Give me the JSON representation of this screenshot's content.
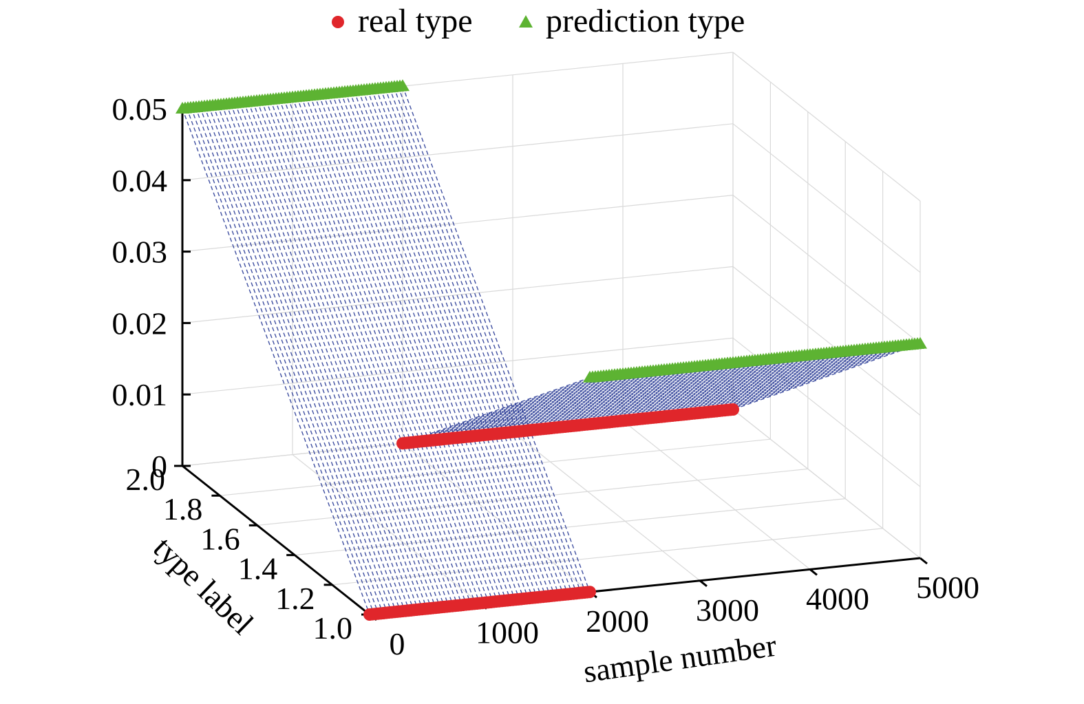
{
  "chart_data": {
    "type": "scatter",
    "projection": "3d",
    "legend": {
      "placement": "top-center",
      "items": [
        {
          "label": "real type",
          "marker": "circle",
          "color": "#e0262b"
        },
        {
          "label": "prediction type",
          "marker": "triangle",
          "color": "#5db332"
        }
      ]
    },
    "axes": {
      "x": {
        "label": "sample number",
        "range": [
          0,
          5000
        ],
        "ticks": [
          "0",
          "1000",
          "2000",
          "3000",
          "4000",
          "5000"
        ]
      },
      "y": {
        "label": "type label",
        "range": [
          1.0,
          2.0
        ],
        "ticks": [
          "1.0",
          "1.2",
          "1.4",
          "1.6",
          "1.8",
          "2.0"
        ]
      },
      "z": {
        "label": "",
        "range": [
          0,
          0.05
        ],
        "ticks": [
          "0",
          "0.01",
          "0.02",
          "0.03",
          "0.04",
          "0.05"
        ]
      }
    },
    "grid": true,
    "series": [
      {
        "name": "real type",
        "segments": [
          {
            "x": [
              0,
              2000
            ],
            "y": 1.0,
            "z": 0
          },
          {
            "x": [
              2000,
              5000
            ],
            "y": 2.0,
            "z": 0
          }
        ]
      },
      {
        "name": "prediction type",
        "segments": [
          {
            "x": [
              0,
              2000
            ],
            "y": 2.0,
            "z": 0.05
          },
          {
            "x": [
              2000,
              5000
            ],
            "y": 1.0,
            "z": 0.03
          }
        ]
      }
    ],
    "connectors": {
      "style": "dashed",
      "color": "#2a3b96"
    }
  }
}
